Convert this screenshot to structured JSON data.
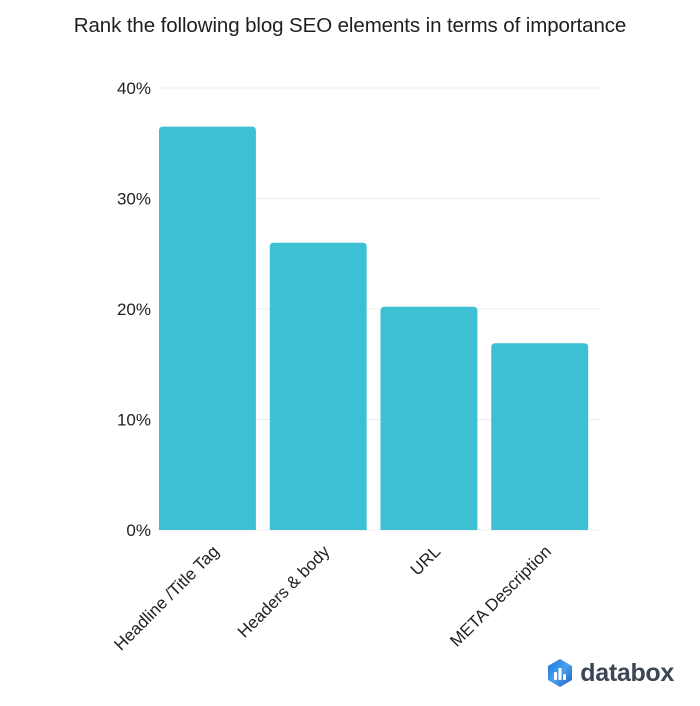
{
  "chart_data": {
    "type": "bar",
    "title": "Rank the following blog SEO elements in terms of importance",
    "categories": [
      "Headline /Title Tag",
      "Headers & body",
      "URL",
      "META Description"
    ],
    "values": [
      36.5,
      26.0,
      20.2,
      16.9
    ],
    "ylim": [
      0,
      40
    ],
    "yticks": [
      0,
      10,
      20,
      30,
      40
    ],
    "ytick_format": "{v}%",
    "grid": true,
    "bar_color": "#3ec0d4"
  },
  "branding": {
    "name": "databox",
    "logo_colors": [
      "#1b6fd6",
      "#4aa3f0",
      "#2459b8"
    ]
  }
}
